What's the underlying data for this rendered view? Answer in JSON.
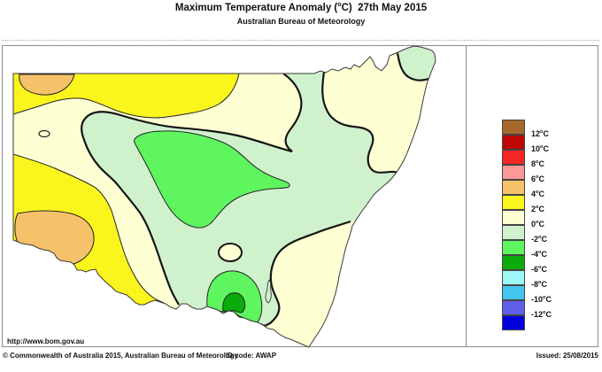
{
  "title": "Maximum Temperature Anomaly (°C)  27th May 2015",
  "subtitle": "Australian Bureau of Meteorology",
  "legend": {
    "colors": [
      "#A5692D",
      "#C00505",
      "#F52525",
      "#FC9898",
      "#F6C269",
      "#FBF51E",
      "#FFFFD4",
      "#CFF2CD",
      "#5FF55F",
      "#0AAB0A",
      "#9EF7F7",
      "#44C5ED",
      "#6060E8",
      "#0202DF"
    ],
    "labels": [
      "12°C",
      "10°C",
      "8°C",
      "6°C",
      "4°C",
      "2°C",
      "0°C",
      "-2°C",
      "-4°C",
      "-6°C",
      "-8°C",
      "-10°C",
      "-12°C"
    ]
  },
  "footer": {
    "url": "http://www.bom.gov.au",
    "copyright": "© Commonwealth of Australia 2015, Australian Bureau of Meteorology",
    "id_code": "ID code: AWAP",
    "issued": "Issued: 25/08/2015"
  },
  "map": {
    "region": "New South Wales",
    "palette": {
      "orange_4_6": "#F6C269",
      "yellow_2_4": "#FBF51E",
      "cream_0_2": "#FFFFD4",
      "mint_neg2_0": "#CFF2CD",
      "green_neg4_neg2": "#5FF55F",
      "deepgreen_neg6_neg4": "#0AAB0A",
      "sea": "#FFFFFF",
      "contour": "#151515",
      "thin_contour": "#222222",
      "state_border": "#3A3A3A"
    }
  },
  "chart_data": {
    "type": "heatmap",
    "title": "Maximum Temperature Anomaly (°C) 27th May 2015",
    "legend_values_c": [
      12,
      10,
      8,
      6,
      4,
      2,
      0,
      -2,
      -4,
      -6,
      -8,
      -10,
      -12
    ],
    "anomaly_range_on_map_c": [
      -6,
      6
    ],
    "regions": [
      {
        "area": "far north-west corner",
        "anomaly_c": "+4 to +6"
      },
      {
        "area": "west (Murray / lower Darling)",
        "anomaly_c": "+4 to +6"
      },
      {
        "area": "north-west and western band",
        "anomaly_c": "+2 to +4"
      },
      {
        "area": "central-west band, New England plateau, south-east coast",
        "anomaly_c": "0 to +2"
      },
      {
        "area": "central and eastern NSW, far north-east tip",
        "anomaly_c": "-2 to 0"
      },
      {
        "area": "central inland blob and southern highlands",
        "anomaly_c": "-4 to -2"
      },
      {
        "area": "southern alpine core",
        "anomaly_c": "-6 to -4"
      }
    ]
  }
}
